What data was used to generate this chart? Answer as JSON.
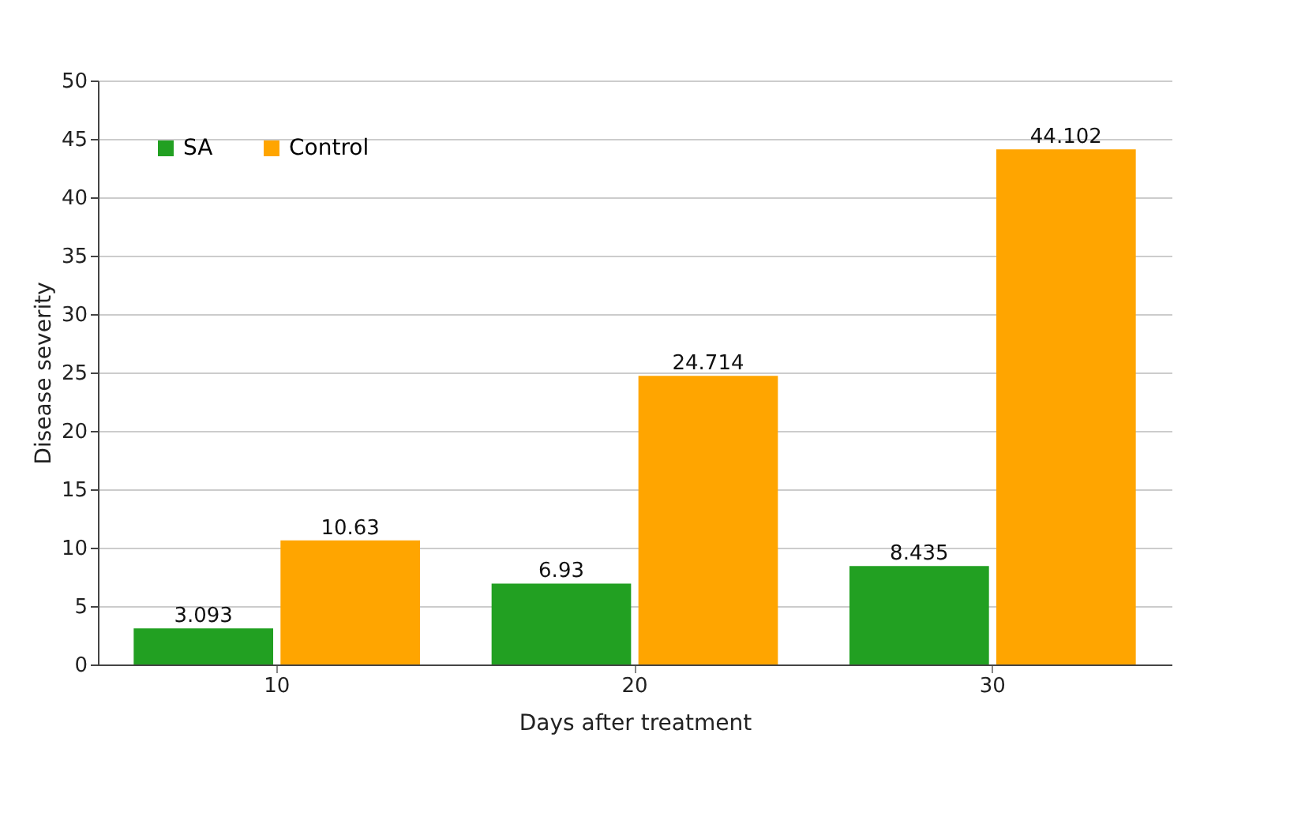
{
  "chart_data": {
    "type": "bar",
    "xlabel": "Days after treatment",
    "ylabel": "Disease severity",
    "categories": [
      "10",
      "20",
      "30"
    ],
    "series": [
      {
        "name": "SA",
        "color": "#22a022",
        "values": [
          3.093,
          6.93,
          8.435
        ]
      },
      {
        "name": "Control",
        "color": "#ffa500",
        "values": [
          10.63,
          24.714,
          44.102
        ]
      }
    ],
    "ylim": [
      0,
      50
    ],
    "yticks": [
      0,
      5,
      10,
      15,
      20,
      25,
      30,
      35,
      40,
      45,
      50
    ],
    "grid": "y",
    "legend": "top left",
    "data_labels": true
  }
}
